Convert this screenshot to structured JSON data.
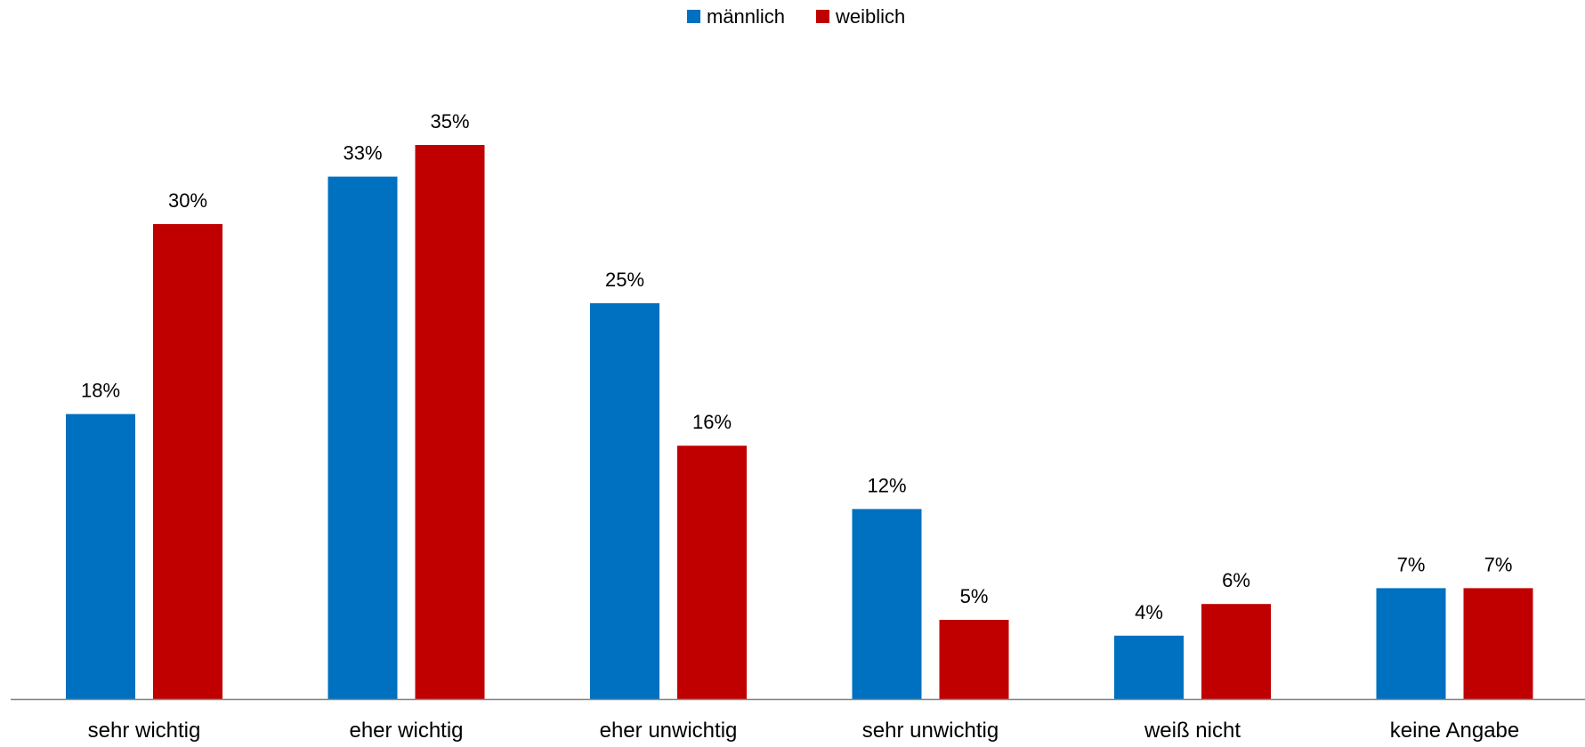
{
  "chart_data": {
    "type": "bar",
    "categories": [
      "sehr wichtig",
      "eher wichtig",
      "eher unwichtig",
      "sehr unwichtig",
      "weiß nicht",
      "keine Angabe"
    ],
    "series": [
      {
        "name": "männlich",
        "color": "#0070C0",
        "values": [
          18,
          33,
          25,
          12,
          4,
          7
        ],
        "labels": [
          "18%",
          "33%",
          "25%",
          "12%",
          "4%",
          "7%"
        ]
      },
      {
        "name": "weiblich",
        "color": "#C00000",
        "values": [
          30,
          35,
          16,
          5,
          6,
          7
        ],
        "labels": [
          "30%",
          "35%",
          "16%",
          "5%",
          "6%",
          "7%"
        ]
      }
    ],
    "ylim": [
      0,
      40
    ],
    "grid": false,
    "legend_position": "top-center",
    "axis_color": "#808080"
  }
}
